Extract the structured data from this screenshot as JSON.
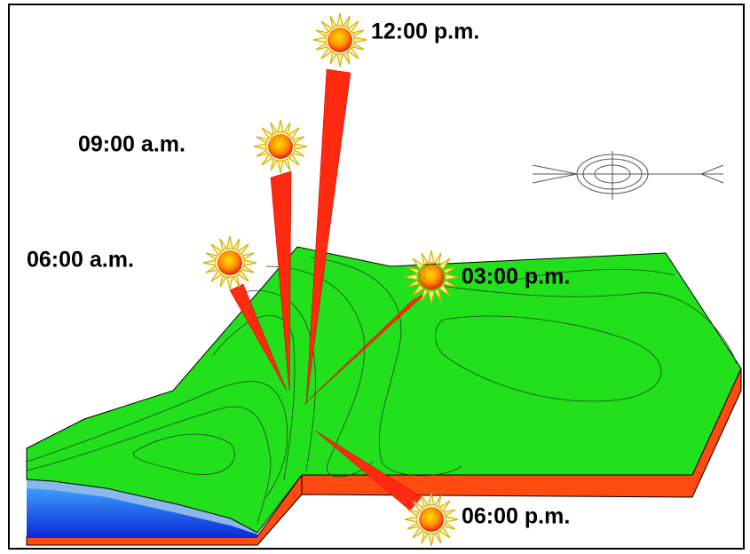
{
  "labels": [
    "12:00 p.m.",
    "09:00 a.m.",
    "06:00 a.m.",
    "03:00 p.m.",
    "06:00 p.m."
  ]
}
